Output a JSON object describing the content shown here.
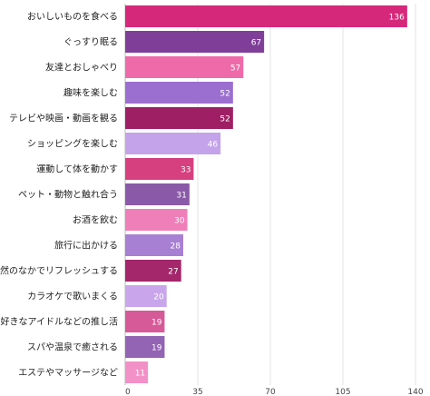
{
  "chart_data": {
    "type": "bar",
    "orientation": "horizontal",
    "categories": [
      "おいしいものを食べる",
      "ぐっすり眠る",
      "友達とおしゃべり",
      "趣味を楽しむ",
      "テレビや映画・動画を観る",
      "ショッピングを楽しむ",
      "運動して体を動かす",
      "ペット・動物と触れ合う",
      "お酒を飲む",
      "旅行に出かける",
      "自然のなかでリフレッシュする",
      "カラオケで歌いまくる",
      "好きなアイドルなどの推し活",
      "スパや温泉で癒される",
      "エステやマッサージなど"
    ],
    "values": [
      136,
      67,
      57,
      52,
      52,
      46,
      33,
      31,
      30,
      28,
      27,
      20,
      19,
      19,
      11
    ],
    "value_labels": [
      "136",
      "67",
      "57",
      "52",
      "52",
      "46",
      "33",
      "31",
      "30",
      "28",
      "27",
      "20",
      "19",
      "19",
      "11"
    ],
    "colors": [
      "#d6287a",
      "#7f3f98",
      "#ef6aa8",
      "#9b6fcf",
      "#9e1f63",
      "#c4a3ea",
      "#d6407f",
      "#8a5aa8",
      "#ef7fb8",
      "#a77fd3",
      "#a3276a",
      "#c9a6ec",
      "#d75a98",
      "#9363b4",
      "#f291c7"
    ],
    "xlim": [
      0,
      140
    ],
    "x_ticks": [
      "0",
      "35",
      "70",
      "105",
      "140"
    ],
    "grid": true,
    "title": "",
    "xlabel": "",
    "ylabel": ""
  }
}
